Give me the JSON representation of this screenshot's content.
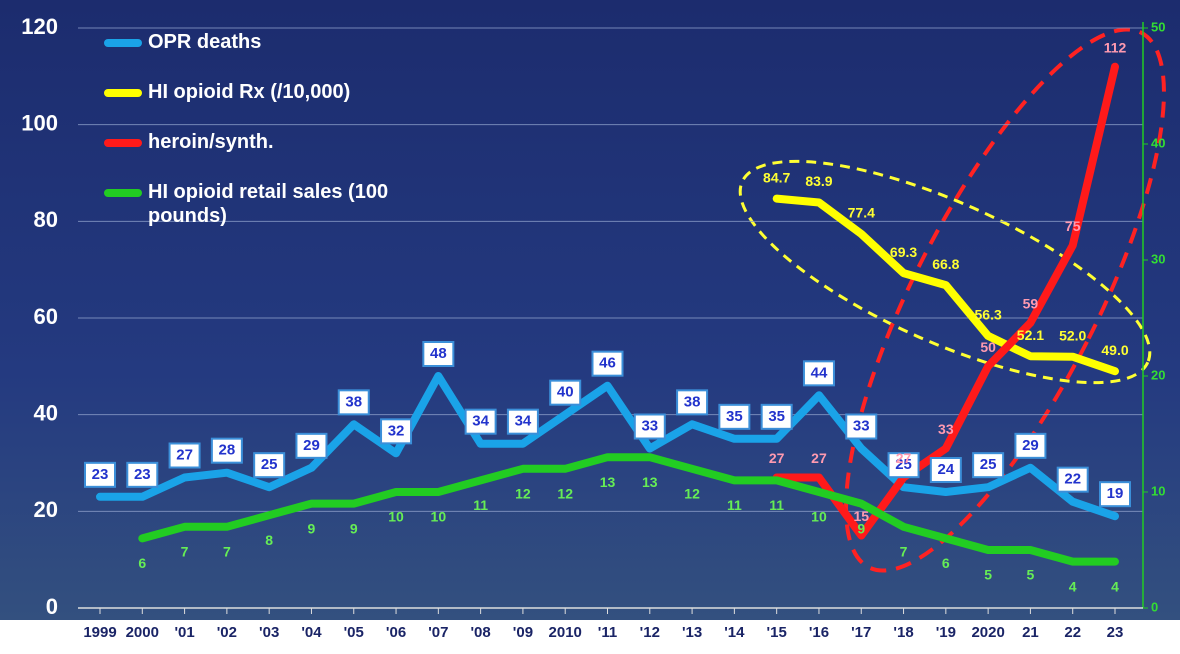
{
  "chart_data": {
    "type": "line",
    "categories": [
      "1999",
      "2000",
      "'01",
      "'02",
      "'03",
      "'04",
      "'05",
      "'06",
      "'07",
      "'08",
      "'09",
      "2010",
      "'11",
      "'12",
      "'13",
      "'14",
      "'15",
      "'16",
      "'17",
      "'18",
      "'19",
      "2020",
      "21",
      "22",
      "23"
    ],
    "ylim": [
      0,
      120
    ],
    "yticks": [
      0,
      20,
      40,
      60,
      80,
      100,
      120
    ],
    "y2lim": [
      0,
      50
    ],
    "y2ticks": [
      0,
      10,
      20,
      30,
      40,
      50
    ],
    "grid": true,
    "legend": "upper left",
    "series": [
      {
        "name": "OPR deaths",
        "color": "#1aa3e8",
        "values": [
          23,
          23,
          27,
          28,
          25,
          29,
          38,
          32,
          48,
          34,
          34,
          40,
          46,
          33,
          38,
          35,
          35,
          44,
          33,
          25,
          24,
          25,
          29,
          22,
          19
        ]
      },
      {
        "name": "HI opioid Rx (/10,000)",
        "color": "#ffff00",
        "values": [
          null,
          null,
          null,
          null,
          null,
          null,
          null,
          null,
          null,
          null,
          null,
          null,
          null,
          null,
          null,
          null,
          84.7,
          83.9,
          77.4,
          69.3,
          66.8,
          56.3,
          52.1,
          52.0,
          49.0
        ],
        "value_labels": [
          null,
          null,
          null,
          null,
          null,
          null,
          null,
          null,
          null,
          null,
          null,
          null,
          null,
          null,
          null,
          null,
          "84.7",
          "83.9",
          "77.4",
          "69.3",
          "66.8",
          "56.3",
          "52.1",
          "52.0",
          "49.0"
        ]
      },
      {
        "name": "heroin/synth.",
        "color": "#ff1a1a",
        "values": [
          null,
          null,
          null,
          null,
          null,
          null,
          null,
          null,
          null,
          null,
          null,
          null,
          null,
          null,
          null,
          null,
          27,
          27,
          15,
          27,
          33,
          50,
          59,
          75,
          112
        ]
      },
      {
        "name": "HI opioid retail sales (100 pounds)",
        "color": "#22cc22",
        "axis": "y2",
        "values": [
          null,
          6,
          7,
          7,
          8,
          9,
          9,
          10,
          10,
          11,
          12,
          12,
          13,
          13,
          12,
          11,
          11,
          10,
          9,
          7,
          6,
          5,
          5,
          4,
          4
        ]
      }
    ]
  }
}
